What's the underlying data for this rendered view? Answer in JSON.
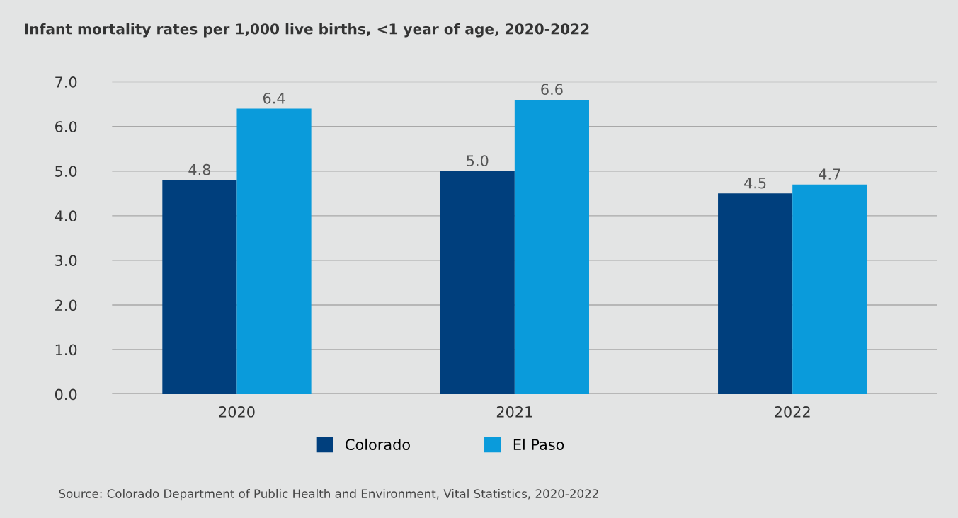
{
  "chart_data": {
    "type": "bar",
    "title": "Infant mortality rates per 1,000 live births, <1 year of age, 2020-2022",
    "categories": [
      "2020",
      "2021",
      "2022"
    ],
    "series": [
      {
        "name": "Colorado",
        "color": "#003f7d",
        "values": [
          4.8,
          5.0,
          4.5
        ],
        "value_labels": [
          "4.8",
          "5.0",
          "4.5"
        ]
      },
      {
        "name": "El Paso",
        "color": "#0a9bdb",
        "values": [
          6.4,
          6.6,
          4.7
        ],
        "value_labels": [
          "6.4",
          "6.6",
          "4.7"
        ]
      }
    ],
    "ylim": [
      0,
      7
    ],
    "yticks": [
      "0.0",
      "1.0",
      "2.0",
      "3.0",
      "4.0",
      "5.0",
      "6.0",
      "7.0"
    ],
    "grid": "y",
    "legend": "bottom",
    "annotations": [
      "Source: Colorado Department of Public Health and Environment, Vital Statistics, 2020-2022"
    ]
  }
}
